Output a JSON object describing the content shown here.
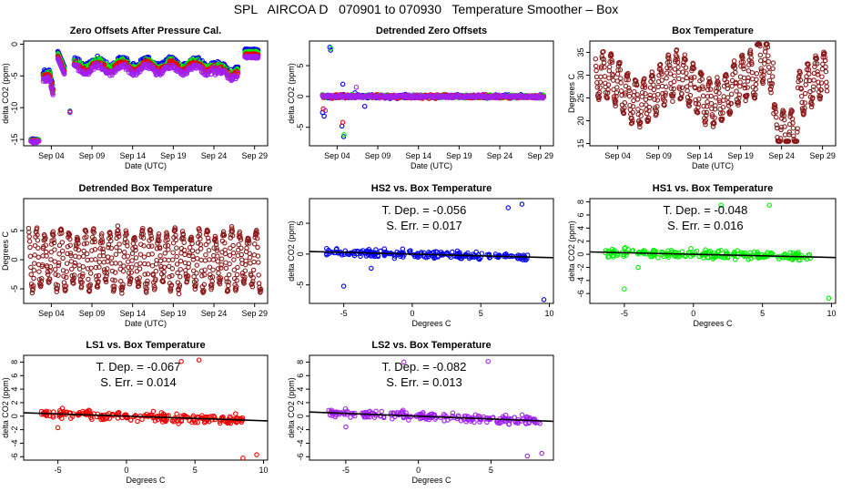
{
  "figure_title": "SPL   AIRCOA D   070901 to 070930   Temperature Smoother – Box",
  "colors": {
    "hs1": "#00ee00",
    "hs2": "#0000ee",
    "ls1": "#ee0000",
    "ls2": "#a020f0",
    "box": "#8b1a1a",
    "fit": "#000000"
  },
  "chart_data": [
    {
      "id": "zero",
      "type": "scatter",
      "title": "Zero Offsets After Pressure Cal.",
      "xlabel": "Date (UTC)",
      "ylabel": "delta CO2 (ppm)",
      "xlim": [
        0.6,
        30.6
      ],
      "ylim": [
        -16,
        0.5
      ],
      "xticks": [
        4,
        9,
        14,
        19,
        24,
        29
      ],
      "xtick_labels": [
        "Sep 04",
        "Sep 09",
        "Sep 14",
        "Sep 19",
        "Sep 24",
        "Sep 29"
      ],
      "yticks": [
        0,
        -5,
        -10,
        -15
      ],
      "ytick_labels": [
        "0",
        "-5",
        "-10",
        "-15"
      ],
      "series": [
        {
          "name": "HS2",
          "color": "hs2"
        },
        {
          "name": "HS1",
          "color": "hs1"
        },
        {
          "name": "LS1",
          "color": "ls1"
        },
        {
          "name": "LS2",
          "color": "ls2"
        }
      ]
    },
    {
      "id": "detrended",
      "type": "scatter",
      "title": "Detrended Zero Offsets",
      "xlabel": "Date (UTC)",
      "ylabel": "delta CO2 (ppm)",
      "xlim": [
        0.6,
        30.6
      ],
      "ylim": [
        -8,
        9
      ],
      "xticks": [
        4,
        9,
        14,
        19,
        24,
        29
      ],
      "xtick_labels": [
        "Sep 04",
        "Sep 09",
        "Sep 14",
        "Sep 19",
        "Sep 24",
        "Sep 29"
      ],
      "yticks": [
        5,
        0,
        -5
      ],
      "ytick_labels": [
        "5",
        "0",
        "-5"
      ],
      "series": [
        {
          "name": "HS2",
          "color": "hs2"
        },
        {
          "name": "HS1",
          "color": "hs1"
        },
        {
          "name": "LS1",
          "color": "ls1"
        },
        {
          "name": "LS2",
          "color": "ls2"
        }
      ]
    },
    {
      "id": "boxtemp",
      "type": "scatter",
      "title": "Box Temperature",
      "xlabel": "Date (UTC)",
      "ylabel": "Degrees C",
      "xlim": [
        0.6,
        30.6
      ],
      "ylim": [
        14.5,
        37.5
      ],
      "xticks": [
        4,
        9,
        14,
        19,
        24,
        29
      ],
      "xtick_labels": [
        "Sep 04",
        "Sep 09",
        "Sep 14",
        "Sep 19",
        "Sep 24",
        "Sep 29"
      ],
      "yticks": [
        15,
        20,
        25,
        30,
        35
      ],
      "ytick_labels": [
        "15",
        "20",
        "25",
        "30",
        "35"
      ],
      "series": [
        {
          "name": "Box",
          "color": "box"
        }
      ]
    },
    {
      "id": "detbox",
      "type": "scatter",
      "title": "Detrended Box Temperature",
      "xlabel": "Date (UTC)",
      "ylabel": "Degrees C",
      "xlim": [
        0.6,
        30.6
      ],
      "ylim": [
        -7.5,
        10.5
      ],
      "xticks": [
        4,
        9,
        14,
        19,
        24,
        29
      ],
      "xtick_labels": [
        "Sep 04",
        "Sep 09",
        "Sep 14",
        "Sep 19",
        "Sep 24",
        "Sep 29"
      ],
      "yticks": [
        -5,
        0,
        5
      ],
      "ytick_labels": [
        "-5",
        "0",
        "5"
      ],
      "series": [
        {
          "name": "Box",
          "color": "box"
        }
      ]
    },
    {
      "id": "hs2",
      "type": "scatter",
      "title": "HS2 vs. Box Temperature",
      "xlabel": "Degrees C",
      "ylabel": "delta CO2 (ppm)",
      "xlim": [
        -7.5,
        10.3
      ],
      "ylim": [
        -8,
        9
      ],
      "xticks": [
        -5,
        0,
        5,
        10
      ],
      "xtick_labels": [
        "-5",
        "0",
        "5",
        "10"
      ],
      "yticks": [
        5,
        0,
        -5
      ],
      "ytick_labels": [
        "5",
        "0",
        "-5"
      ],
      "slope": -0.056,
      "annotation": [
        "T. Dep. =  -0.056",
        "S. Err. = 0.017"
      ],
      "series": [
        {
          "name": "HS2",
          "color": "hs2"
        }
      ]
    },
    {
      "id": "hs1",
      "type": "scatter",
      "title": "HS1 vs. Box Temperature",
      "xlabel": "Degrees C",
      "ylabel": "delta CO2 (ppm)",
      "xlim": [
        -7.5,
        10.3
      ],
      "ylim": [
        -7.5,
        8.5
      ],
      "xticks": [
        -5,
        0,
        5,
        10
      ],
      "xtick_labels": [
        "-5",
        "0",
        "5",
        "10"
      ],
      "yticks": [
        8,
        6,
        4,
        2,
        0,
        -2,
        -4,
        -6
      ],
      "ytick_labels": [
        "8",
        "6",
        "4",
        "2",
        "0",
        "-2",
        "-4",
        "-6"
      ],
      "slope": -0.048,
      "annotation": [
        "T. Dep. =  -0.048",
        "S. Err. = 0.016"
      ],
      "series": [
        {
          "name": "HS1",
          "color": "hs1"
        }
      ]
    },
    {
      "id": "ls1",
      "type": "scatter",
      "title": "LS1 vs. Box Temperature",
      "xlabel": "Degrees C",
      "ylabel": "delta CO2 (ppm)",
      "xlim": [
        -7.5,
        10.3
      ],
      "ylim": [
        -6.5,
        9
      ],
      "xticks": [
        -5,
        0,
        5,
        10
      ],
      "xtick_labels": [
        "-5",
        "0",
        "5",
        "10"
      ],
      "yticks": [
        8,
        6,
        4,
        2,
        0,
        -2,
        -4,
        -6
      ],
      "ytick_labels": [
        "8",
        "6",
        "4",
        "2",
        "0",
        "-2",
        "-4",
        "-6"
      ],
      "slope": -0.067,
      "annotation": [
        "T. Dep. =  -0.067",
        "S. Err. = 0.014"
      ],
      "series": [
        {
          "name": "LS1",
          "color": "ls1"
        }
      ]
    },
    {
      "id": "ls2",
      "type": "scatter",
      "title": "LS2 vs. Box Temperature",
      "xlabel": "Degrees C",
      "ylabel": "delta CO2 (ppm)",
      "xlim": [
        -7.5,
        9.3
      ],
      "ylim": [
        -6.5,
        9
      ],
      "xticks": [
        -5,
        0,
        5
      ],
      "xtick_labels": [
        "-5",
        "0",
        "5"
      ],
      "yticks": [
        8,
        6,
        4,
        2,
        0,
        -2,
        -4,
        -6
      ],
      "ytick_labels": [
        "8",
        "6",
        "4",
        "2",
        "0",
        "-2",
        "-4",
        "-6"
      ],
      "slope": -0.082,
      "annotation": [
        "T. Dep. =  -0.082",
        "S. Err. = 0.013"
      ],
      "series": [
        {
          "name": "LS2",
          "color": "ls2"
        }
      ]
    }
  ]
}
